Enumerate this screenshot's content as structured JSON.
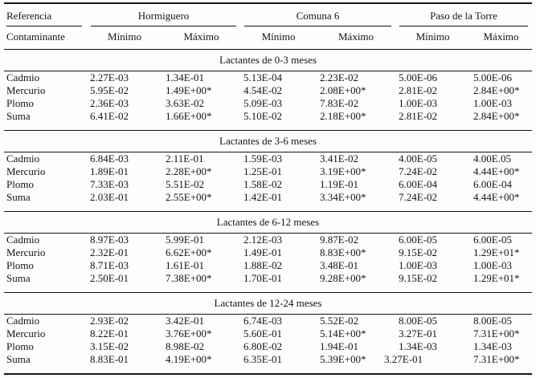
{
  "table": {
    "corner_header": "Referencia",
    "corner_subheader": "Contaminante",
    "groups": [
      {
        "label": "Hormiguero"
      },
      {
        "label": "Comuna 6"
      },
      {
        "label": "Paso de la Torre"
      }
    ],
    "sub_headers": [
      "Mínimo",
      "Máximo"
    ],
    "sections": [
      {
        "title": "Lactantes de 0-3 meses",
        "rows": [
          {
            "label": "Cadmio",
            "values": [
              "2.27E-03",
              "1.34E-01",
              "5.13E-04",
              "2.23E-02",
              "5.00E-06",
              "5.00E-06"
            ]
          },
          {
            "label": "Mercurio",
            "values": [
              "5.95E-02",
              "1.49E+00*",
              "4.54E-02",
              "2.08E+00*",
              "2.81E-02",
              "2.84E+00*"
            ]
          },
          {
            "label": "Plomo",
            "values": [
              "2.36E-03",
              "3.63E-02",
              "5.09E-03",
              "7.83E-02",
              "1.00E-03",
              "1.00E-03"
            ]
          },
          {
            "label": "Suma",
            "values": [
              "6.41E-02",
              "1.66E+00*",
              "5.10E-02",
              "2.18E+00*",
              "2.81E-02",
              "2.84E+00*"
            ]
          }
        ]
      },
      {
        "title": "Lactantes de 3-6 meses",
        "rows": [
          {
            "label": "Cadmio",
            "values": [
              "6.84E-03",
              "2.11E-01",
              "1.59E-03",
              "3.41E-02",
              "4.00E-05",
              "4.00E.05"
            ]
          },
          {
            "label": "Mercurio",
            "values": [
              "1.89E-01",
              "2.28E+00*",
              "1.25E-01",
              "3.19E+00*",
              "7.24E-02",
              "4.44E+00*"
            ]
          },
          {
            "label": "Plomo",
            "values": [
              "7.33E-03",
              "5.51E-02",
              "1.58E-02",
              "1.19E-01",
              "6.00E-04",
              "6.00E-04"
            ]
          },
          {
            "label": "Suma",
            "values": [
              "2.03E-01",
              "2.55E+00*",
              "1.42E-01",
              "3.34E+00*",
              "7.24E-02",
              "4.44E+00*"
            ]
          }
        ]
      },
      {
        "title": "Lactantes de 6-12 meses",
        "rows": [
          {
            "label": "Cadmio",
            "values": [
              "8.97E-03",
              "5.99E-01",
              "2.12E-03",
              "9.87E-02",
              "6.00E-05",
              "6.00E-05"
            ]
          },
          {
            "label": "Mercurio",
            "values": [
              "2.32E-01",
              "6.62E+00*",
              "1.49E-01",
              "8.83E+00*",
              "9.15E-02",
              "1.29E+01*"
            ]
          },
          {
            "label": "Plomo",
            "values": [
              "8.71E-03",
              "1.61E-01",
              "1.88E-02",
              "3.48E-01",
              "1.00E-03",
              "1.00E-03"
            ]
          },
          {
            "label": "Suma",
            "values": [
              "2.50E-01",
              "7.38E+00*",
              "1.70E-01",
              "9.28E+00*",
              "9.15E-02",
              "1.29E+01*"
            ]
          }
        ]
      },
      {
        "title": "Lactantes de 12-24 meses",
        "rows": [
          {
            "label": "Cadmio",
            "values": [
              "2.93E-02",
              "3.42E-01",
              "6.74E-03",
              "5.52E-02",
              "8.00E-05",
              "8.00E-05"
            ]
          },
          {
            "label": "Mercurio",
            "values": [
              "8.22E-01",
              "3.76E+00*",
              "5.60E-01",
              "5.14E+00*",
              "3.27E-01",
              "7.31E+00*"
            ]
          },
          {
            "label": "Plomo",
            "values": [
              "3.15E-02",
              "8.98E-02",
              "6.80E-02",
              "1.94E-01",
              "1.34E-03",
              "1.34E-03"
            ]
          },
          {
            "label": "Suma",
            "values": [
              "8.83E-01",
              "4.19E+00*",
              "6.35E-01",
              "5.39E+00*",
              "3.27E-01",
              "7.31E+00*"
            ]
          }
        ]
      }
    ]
  }
}
